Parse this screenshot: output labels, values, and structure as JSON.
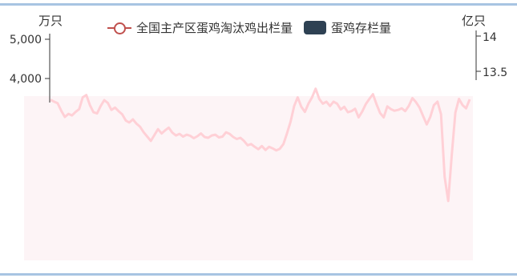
{
  "legend": {
    "series1": "全国主产区蛋鸡淘汰鸡出栏量",
    "series2": "蛋鸡存栏量"
  },
  "axes": {
    "left_unit": "万只",
    "right_unit": "亿只",
    "left_ticks": [
      "5,000",
      "4,000"
    ],
    "right_ticks": [
      "14",
      "13.5"
    ]
  },
  "colors": {
    "culled_line": "#c0504d",
    "culled_line_faded": "#ffd0d6",
    "inventory_bars": "#2e4153",
    "axis": "#333333",
    "frame": "#a8c4e2"
  },
  "chart_data": {
    "type": "line",
    "title": "",
    "legend_position": "top",
    "left_axis": {
      "unit": "万只",
      "ticks": [
        5000,
        4000
      ]
    },
    "right_axis": {
      "unit": "亿只",
      "ticks": [
        14,
        13.5
      ]
    },
    "series": [
      {
        "name": "全国主产区蛋鸡淘汰鸡出栏量",
        "type": "line",
        "axis": "left",
        "values": [
          3460,
          3410,
          3370,
          3180,
          3020,
          3100,
          3060,
          3150,
          3220,
          3520,
          3580,
          3320,
          3140,
          3110,
          3300,
          3450,
          3380,
          3200,
          3260,
          3170,
          3090,
          2930,
          2880,
          2960,
          2850,
          2770,
          2630,
          2520,
          2410,
          2560,
          2710,
          2600,
          2680,
          2750,
          2620,
          2550,
          2590,
          2520,
          2570,
          2540,
          2480,
          2530,
          2600,
          2510,
          2490,
          2550,
          2570,
          2500,
          2520,
          2630,
          2590,
          2510,
          2460,
          2490,
          2410,
          2300,
          2330,
          2260,
          2200,
          2280,
          2180,
          2260,
          2220,
          2170,
          2210,
          2330,
          2600,
          2900,
          3300,
          3520,
          3280,
          3150,
          3360,
          3520,
          3740,
          3480,
          3360,
          3410,
          3300,
          3410,
          3360,
          3210,
          3280,
          3140,
          3170,
          3230,
          3010,
          3160,
          3350,
          3480,
          3600,
          3340,
          3120,
          3010,
          3290,
          3220,
          3180,
          3200,
          3240,
          3170,
          3300,
          3500,
          3400,
          3260,
          3040,
          2830,
          3020,
          3320,
          3410,
          3090,
          1500,
          880,
          2050,
          3130,
          3480,
          3320,
          3240,
          3470
        ]
      },
      {
        "name": "蛋鸡存栏量",
        "type": "bar",
        "axis": "right",
        "values": []
      }
    ]
  }
}
